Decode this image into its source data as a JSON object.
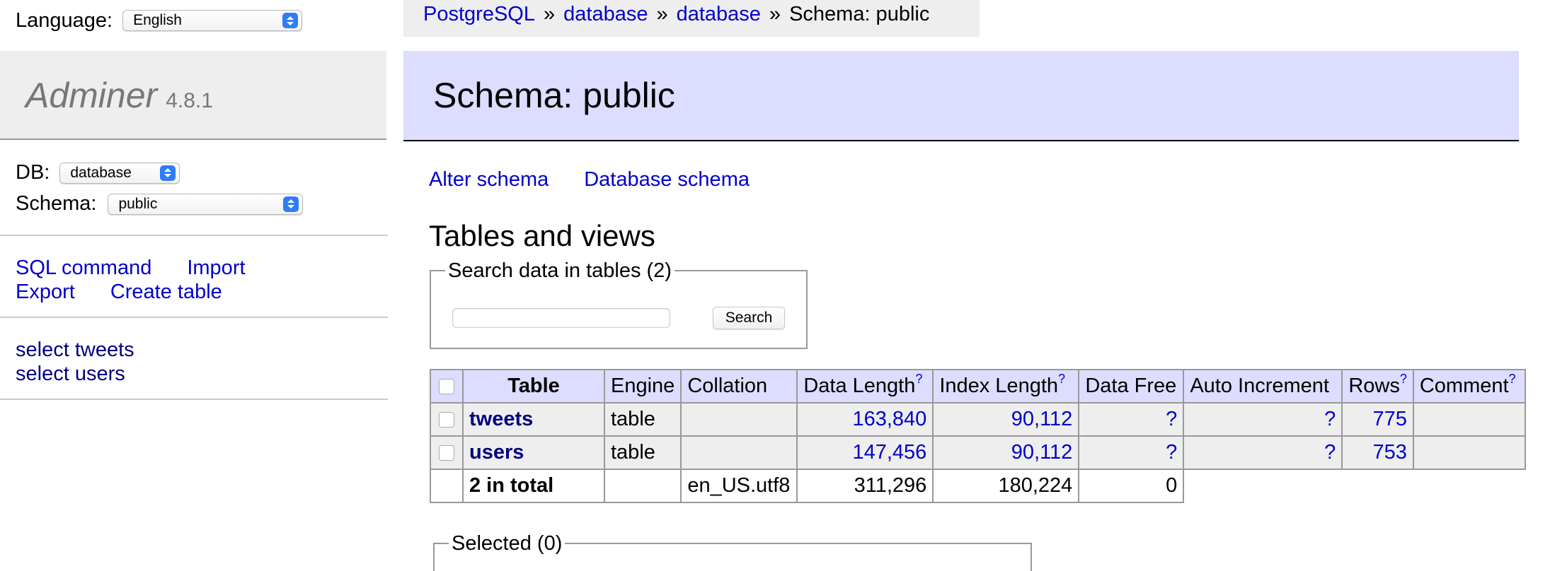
{
  "sidebar": {
    "language_label": "Language:",
    "language_value": "English",
    "app_name": "Adminer",
    "version": "4.8.1",
    "db_label": "DB:",
    "db_value": "database",
    "schema_label": "Schema:",
    "schema_value": "public",
    "menu": {
      "sql_command": "SQL command",
      "import": "Import",
      "export": "Export",
      "create_table": "Create table"
    },
    "tables": [
      "select tweets",
      "select users"
    ]
  },
  "breadcrumb": {
    "items": [
      "PostgreSQL",
      "database",
      "database"
    ],
    "separator": "»",
    "current": "Schema: public"
  },
  "main": {
    "title": "Schema: public",
    "actions": [
      "Alter schema",
      "Database schema"
    ],
    "section_title": "Tables and views",
    "search": {
      "legend": "Search data in tables (2)",
      "value": "",
      "button": "Search"
    },
    "table": {
      "headers": [
        "Table",
        "Engine",
        "Collation",
        "Data Length",
        "Index Length",
        "Data Free",
        "Auto Increment",
        "Rows",
        "Comment"
      ],
      "help_mark": "?",
      "rows": [
        {
          "name": "tweets",
          "engine": "table",
          "collation": "",
          "data_length": "163,840",
          "index_length": "90,112",
          "data_free": "?",
          "auto_increment": "?",
          "rows": "775",
          "comment": ""
        },
        {
          "name": "users",
          "engine": "table",
          "collation": "",
          "data_length": "147,456",
          "index_length": "90,112",
          "data_free": "?",
          "auto_increment": "?",
          "rows": "753",
          "comment": ""
        }
      ],
      "total": {
        "label": "2 in total",
        "collation": "en_US.utf8",
        "data_length": "311,296",
        "index_length": "180,224",
        "data_free": "0"
      }
    },
    "selected_legend": "Selected (0)"
  },
  "colors": {
    "link": "#0000cc",
    "table_link": "#000080",
    "header_bg": "#ddddff",
    "sidebar_bg": "#eeeeee",
    "select_accent": "#2f7df6"
  }
}
